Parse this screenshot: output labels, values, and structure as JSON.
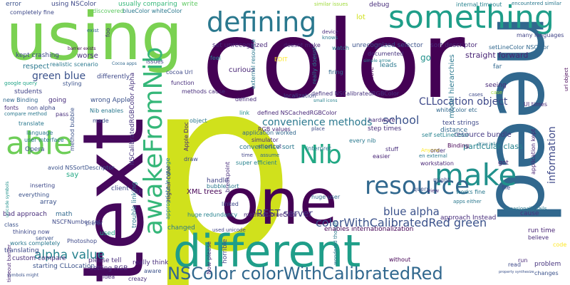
{
  "words": [
    {
      "text": "p",
      "color": "#d0e11c"
    },
    {
      "text": "color",
      "color": "#440154"
    },
    {
      "text": "need",
      "color": "#31688e"
    },
    {
      "text": "text",
      "color": "#46085c"
    },
    {
      "text": "using",
      "color": "#7ad151"
    },
    {
      "text": "one",
      "color": "#440154"
    },
    {
      "text": "different",
      "color": "#1f9e89"
    },
    {
      "text": "something",
      "color": "#1f9e89"
    },
    {
      "text": "defining",
      "color": "#2a788e"
    },
    {
      "text": "awakeFromNib",
      "color": "#35b779"
    },
    {
      "text": "able",
      "color": "#6ece58"
    },
    {
      "text": "make",
      "color": "#21918c"
    },
    {
      "text": "Nib",
      "color": "#22a884"
    },
    {
      "text": "resource",
      "color": "#31688e"
    },
    {
      "text": "NSColor colorWithCalibratedRed",
      "color": "#31688e"
    },
    {
      "text": "colorWithCalibratedRed green",
      "color": "#3b528b"
    },
    {
      "text": "alpha value",
      "color": "#26828e"
    },
    {
      "text": "blue alpha",
      "color": "#3b528b"
    },
    {
      "text": "REST server",
      "color": "#443983"
    },
    {
      "text": "convenience methods",
      "color": "#2a788e"
    },
    {
      "text": "green blue",
      "color": "#3b528b"
    },
    {
      "text": "CLLocation object",
      "color": "#3e4989"
    },
    {
      "text": "school",
      "color": "#3b528b"
    },
    {
      "text": "information",
      "color": "#3e4989"
    },
    {
      "text": "straight forward",
      "color": "#482475"
    },
    {
      "text": "model hierarchies",
      "color": "#2a788e"
    },
    {
      "text": "resource bundle",
      "color": "#443983"
    },
    {
      "text": "particular class",
      "color": "#26828e"
    },
    {
      "text": "respect",
      "color": "#2a788e"
    },
    {
      "text": "students",
      "color": "#414487"
    },
    {
      "text": "kept crashing",
      "color": "#3e4989"
    },
    {
      "text": "worse",
      "color": "#472d7b"
    },
    {
      "text": "differently",
      "color": "#3e4989"
    },
    {
      "text": "curious",
      "color": "#482475"
    },
    {
      "text": "error",
      "color": "#3b528b"
    },
    {
      "text": "using NSColor",
      "color": "#3e4989"
    },
    {
      "text": "completely fine",
      "color": "#3e4989"
    },
    {
      "text": "usually comparing",
      "color": "#35b779"
    },
    {
      "text": "blueColor whiteColor",
      "color": "#2a788e"
    },
    {
      "text": "write",
      "color": "#5ec962"
    },
    {
      "text": "discovered",
      "color": "#5ec962"
    },
    {
      "text": "similar issues",
      "color": "#9fda3a"
    },
    {
      "text": "debug",
      "color": "#472d7b"
    },
    {
      "text": "internal timeout",
      "color": "#26828e"
    },
    {
      "text": "encountered similar",
      "color": "#2a788e"
    },
    {
      "text": "set unrecognized",
      "color": "#482878"
    },
    {
      "text": "doesnt make",
      "color": "#482878"
    },
    {
      "text": "device",
      "color": "#472d7b"
    },
    {
      "text": "knows",
      "color": "#2a788e"
    },
    {
      "text": "lot",
      "color": "#d0e11c"
    },
    {
      "text": "unrecognized selector",
      "color": "#3b528b"
    },
    {
      "text": "sort descriptor",
      "color": "#482878"
    },
    {
      "text": "many languages",
      "color": "#414487"
    },
    {
      "text": "documented",
      "color": "#46337e"
    },
    {
      "text": "simple arrow",
      "color": "#26828e"
    },
    {
      "text": "setLineColor NSColor",
      "color": "#31688e"
    },
    {
      "text": "leads",
      "color": "#2a788e"
    },
    {
      "text": "really doesnt",
      "color": "#2a788e"
    },
    {
      "text": "watch",
      "color": "#2a788e"
    },
    {
      "text": "variable",
      "color": "#440154"
    },
    {
      "text": "go",
      "color": "#21918c"
    },
    {
      "text": "seeing",
      "color": "#482878"
    },
    {
      "text": "case",
      "color": "#9fda3a"
    },
    {
      "text": "far",
      "color": "#31688e"
    },
    {
      "text": "exist",
      "color": "#31688e"
    },
    {
      "text": "realistic scenario",
      "color": "#2a788e"
    },
    {
      "text": "issues",
      "color": "#414487"
    },
    {
      "text": "Cocoa apps",
      "color": "#31688e"
    },
    {
      "text": "foo",
      "color": "#472d7b"
    },
    {
      "text": "feel",
      "color": "#2a788e"
    },
    {
      "text": "external resource",
      "color": "#2a788e"
    },
    {
      "text": "EDIT",
      "color": "#fde725"
    },
    {
      "text": "firing",
      "color": "#31688e"
    },
    {
      "text": "google query",
      "color": "#20a486"
    },
    {
      "text": "styling",
      "color": "#3b528b"
    },
    {
      "text": "cocoa Url",
      "color": "#3e4989"
    },
    {
      "text": "function",
      "color": "#472d7b"
    },
    {
      "text": "methods cause",
      "color": "#472d7b"
    },
    {
      "text": "new Binding",
      "color": "#31688e"
    },
    {
      "text": "going",
      "color": "#472d7b"
    },
    {
      "text": "wrong Apple",
      "color": "#3b528b"
    },
    {
      "text": "NSCalibratedRGBColor Alpha",
      "color": "#46337e"
    },
    {
      "text": "defined",
      "color": "#472d7b"
    },
    {
      "text": "defined NSCalibratedRGBColor",
      "color": "#46337e"
    },
    {
      "text": "localization",
      "color": "#3e4989"
    },
    {
      "text": "small icons",
      "color": "#26828e"
    },
    {
      "text": "UI times",
      "color": "#482878"
    },
    {
      "text": "cases",
      "color": "#3e4989"
    },
    {
      "text": "fonts",
      "color": "#482878"
    },
    {
      "text": "non alpha",
      "color": "#3e4989"
    },
    {
      "text": "compare method",
      "color": "#2a788e"
    },
    {
      "text": "pass",
      "color": "#472d7b"
    },
    {
      "text": "Nib enables",
      "color": "#2a788e"
    },
    {
      "text": "link",
      "color": "#21918c"
    },
    {
      "text": "defined NSCachedRGBColor",
      "color": "#482878"
    },
    {
      "text": "whiteColor etc",
      "color": "#31688e"
    },
    {
      "text": "translate",
      "color": "#2a788e"
    },
    {
      "text": "made",
      "color": "#3b528b"
    },
    {
      "text": "method bubble",
      "color": "#3b528b"
    },
    {
      "text": "hardware",
      "color": "#472d7b"
    },
    {
      "text": "step times",
      "color": "#472d7b"
    },
    {
      "text": "distance",
      "color": "#31688e"
    },
    {
      "text": "self setLineColor",
      "color": "#26828e"
    },
    {
      "text": "language",
      "color": "#2a788e"
    },
    {
      "text": "user interface",
      "color": "#2a788e"
    },
    {
      "text": "simulator",
      "color": "#472d7b"
    },
    {
      "text": "shortcut",
      "color": "#414487"
    },
    {
      "text": "application worked",
      "color": "#31688e"
    },
    {
      "text": "place",
      "color": "#3e4989"
    },
    {
      "text": "text strings",
      "color": "#3e4989"
    },
    {
      "text": "Binding",
      "color": "#440154"
    },
    {
      "text": "Anyone",
      "color": "#fde725"
    },
    {
      "text": "order",
      "color": "#472d7b"
    },
    {
      "text": "draw inline",
      "color": "#2a788e"
    },
    {
      "text": "application kept",
      "color": "#482475"
    },
    {
      "text": "url object",
      "color": "#440154"
    },
    {
      "text": "Opera",
      "color": "#3b528b"
    },
    {
      "text": "avoid NSSortDescriptor",
      "color": "#3b528b"
    },
    {
      "text": "say",
      "color": "#22a884"
    },
    {
      "text": "client",
      "color": "#3e4989"
    },
    {
      "text": "super efficient",
      "color": "#26828e"
    },
    {
      "text": "time",
      "color": "#414487"
    },
    {
      "text": "assume",
      "color": "#31688e"
    },
    {
      "text": "convenience sort",
      "color": "#2a788e"
    },
    {
      "text": "every nib",
      "color": "#2a788e"
    },
    {
      "text": "stuff",
      "color": "#472d7b"
    },
    {
      "text": "easier",
      "color": "#482475"
    },
    {
      "text": "workstation",
      "color": "#482475"
    },
    {
      "text": "got",
      "color": "#482475"
    },
    {
      "text": "en external",
      "color": "#2a788e"
    },
    {
      "text": "everything",
      "color": "#3b528b"
    },
    {
      "text": "inserting",
      "color": "#3e4989"
    },
    {
      "text": "UI",
      "color": "#414487"
    },
    {
      "text": "XML trees",
      "color": "#440154"
    },
    {
      "text": "linked",
      "color": "#3e4989"
    },
    {
      "text": "huge user",
      "color": "#31688e"
    },
    {
      "text": "query",
      "color": "#3b528b"
    },
    {
      "text": "array",
      "color": "#3b528b"
    },
    {
      "text": "bad approach",
      "color": "#472d7b"
    },
    {
      "text": "math",
      "color": "#31688e"
    },
    {
      "text": "NSCFNumber set",
      "color": "#3e4989"
    },
    {
      "text": "prefer",
      "color": "#3e4989"
    },
    {
      "text": "breakpoint",
      "color": "#472d7b"
    },
    {
      "text": "huge redundancy",
      "color": "#26828e"
    },
    {
      "text": "methods blueColor",
      "color": "#482878"
    },
    {
      "text": "approach Instead",
      "color": "#472d7b"
    },
    {
      "text": "view",
      "color": "#472d7b"
    },
    {
      "text": "apps either",
      "color": "#2a788e"
    },
    {
      "text": "works fine",
      "color": "#2a788e"
    },
    {
      "text": "file",
      "color": "#3e4989"
    },
    {
      "text": "cause",
      "color": "#46337e"
    },
    {
      "text": "class",
      "color": "#3b528b"
    },
    {
      "text": "thinking now",
      "color": "#3e4989"
    },
    {
      "text": "server",
      "color": "#3b528b"
    },
    {
      "text": "works completely",
      "color": "#2a788e"
    },
    {
      "text": "translating",
      "color": "#3e4989"
    },
    {
      "text": "custom compare",
      "color": "#472d7b"
    },
    {
      "text": "Photoshop",
      "color": "#3e4989"
    },
    {
      "text": "used",
      "color": "#20a486"
    },
    {
      "text": "changed",
      "color": "#2a788e"
    },
    {
      "text": "Now please",
      "color": "#472d7b"
    },
    {
      "text": "used unicode",
      "color": "#414487"
    },
    {
      "text": "wondered though",
      "color": "#2a788e"
    },
    {
      "text": "enables internationalization",
      "color": "#440154"
    },
    {
      "text": "believe",
      "color": "#472d7b"
    },
    {
      "text": "run time",
      "color": "#482475"
    },
    {
      "text": "code",
      "color": "#fde725"
    },
    {
      "text": "starting CLLocation",
      "color": "#3b528b"
    },
    {
      "text": "please tell",
      "color": "#472d7b"
    },
    {
      "text": "setting RGB",
      "color": "#472d7b"
    },
    {
      "text": "idea",
      "color": "#482878"
    },
    {
      "text": "really think",
      "color": "#472d7b"
    },
    {
      "text": "aware",
      "color": "#3b528b"
    },
    {
      "text": "creazy",
      "color": "#472d7b"
    },
    {
      "text": "horrible",
      "color": "#3e4989"
    },
    {
      "text": "without",
      "color": "#440154"
    },
    {
      "text": "run",
      "color": "#482878"
    },
    {
      "text": "problem",
      "color": "#46337e"
    },
    {
      "text": "changes",
      "color": "#3b528b"
    },
    {
      "text": "read",
      "color": "#3e4989"
    },
    {
      "text": "symbols might",
      "color": "#3b528b"
    },
    {
      "text": "timeout barrier",
      "color": "#482475"
    },
    {
      "text": "trouble linking",
      "color": "#2a788e"
    },
    {
      "text": "appropriate language",
      "color": "#26828e"
    },
    {
      "text": "regular color",
      "color": "#46337e"
    },
    {
      "text": "Apple Doc",
      "color": "#482878"
    },
    {
      "text": "draw",
      "color": "#3e4989"
    },
    {
      "text": "object",
      "color": "#2a788e"
    },
    {
      "text": "handle",
      "color": "#414487"
    },
    {
      "text": "bubble sort",
      "color": "#2a788e"
    },
    {
      "text": "RGB values",
      "color": "#482878"
    },
    {
      "text": "interpret",
      "color": "#2a788e"
    },
    {
      "text": "might",
      "color": "#3e4989"
    },
    {
      "text": "occasionally fails",
      "color": "#2a788e"
    },
    {
      "text": "property synthesize",
      "color": "#3b528b"
    },
    {
      "text": "barrier exists",
      "color": "#440154"
    },
    {
      "text": "unicode symbols",
      "color": "#21918c"
    }
  ]
}
